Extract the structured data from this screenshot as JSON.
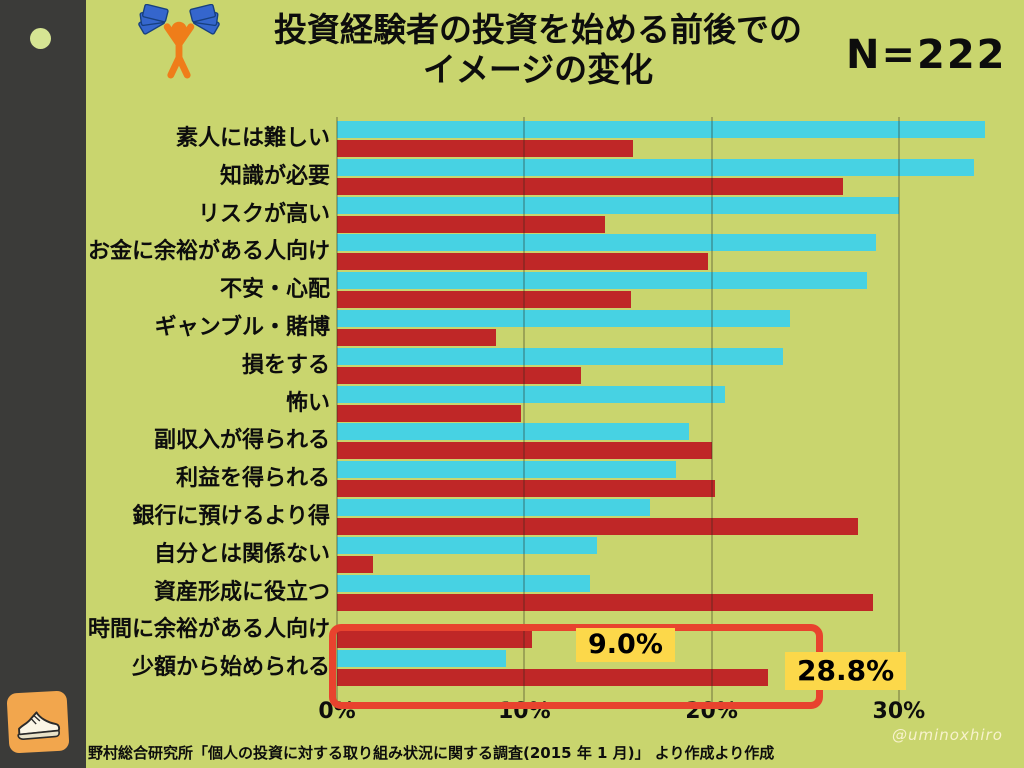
{
  "header": {
    "title_line1": "投資経験者の投資を始める前後での",
    "title_line2": "イメージの変化",
    "sample_size": "N=222"
  },
  "footer": {
    "source": "野村総合研究所「個人の投資に対する取り組み状況に関する調査(2015 年 1 月)」 より作成より作成",
    "watermark": "@uminoxhiro"
  },
  "colors": {
    "background": "#c9d56e",
    "sidebar": "#3b3b39",
    "bar_cyan": "#47d2e3",
    "bar_red": "#bf2727",
    "highlight_box": "#e8432e",
    "callout_background": "#fcd84a"
  },
  "chart_data": {
    "type": "bar",
    "orientation": "horizontal",
    "unit": "%",
    "categories": [
      "素人には難しい",
      "知識が必要",
      "リスクが高い",
      "お金に余裕がある人向け",
      "不安・心配",
      "ギャンブル・賭博",
      "損をする",
      "怖い",
      "副収入が得られる",
      "利益を得られる",
      "銀行に預けるより得",
      "自分とは関係ない",
      "資産形成に役立つ",
      "時間に余裕がある人向け",
      "少額から始められる"
    ],
    "series": [
      {
        "name": "cyan-bars",
        "color": "#47d2e3",
        "values": [
          34.6,
          34.0,
          30.0,
          28.8,
          28.3,
          24.2,
          23.8,
          20.7,
          18.8,
          18.1,
          16.7,
          13.9,
          13.5,
          null,
          9.0
        ]
      },
      {
        "name": "red-bars",
        "color": "#bf2727",
        "values": [
          15.8,
          27.0,
          14.3,
          19.8,
          15.7,
          8.5,
          13.0,
          9.8,
          20.0,
          20.2,
          27.8,
          1.9,
          28.6,
          10.4,
          23.0
        ]
      }
    ],
    "x_axis": {
      "tick_labels": [
        "0%",
        "10%",
        "20%",
        "30%"
      ],
      "tick_values": [
        0,
        10,
        20,
        30
      ],
      "range": [
        0,
        35
      ],
      "grid": true
    },
    "legend": "none",
    "annotations": [
      {
        "text": "9.0%"
      },
      {
        "text": "28.8%"
      }
    ],
    "highlighted_categories": [
      "時間に余裕がある人向け",
      "少額から始められる"
    ]
  }
}
